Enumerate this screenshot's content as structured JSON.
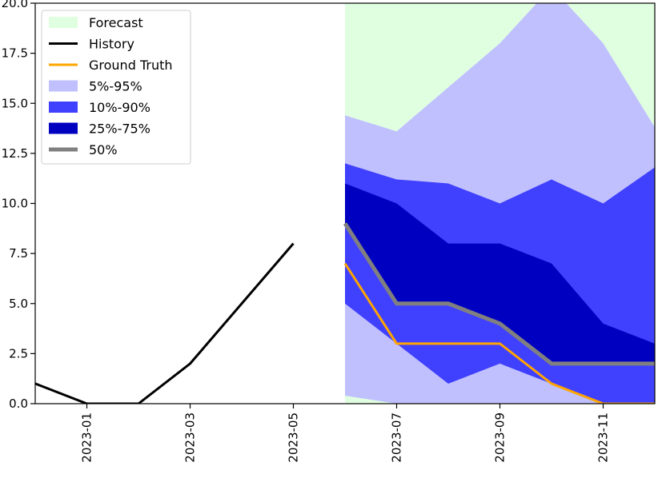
{
  "chart_data": {
    "type": "area",
    "title": "",
    "xlabel": "",
    "ylabel": "",
    "x": [
      "2022-12",
      "2023-01",
      "2023-02",
      "2023-03",
      "2023-04",
      "2023-05",
      "2023-06",
      "2023-07",
      "2023-08",
      "2023-09",
      "2023-10",
      "2023-11",
      "2023-12"
    ],
    "xlim": [
      "2022-12",
      "2023-12"
    ],
    "ylim": [
      0,
      20
    ],
    "x_ticks": [
      "2023-01",
      "2023-03",
      "2023-05",
      "2023-07",
      "2023-09",
      "2023-11"
    ],
    "y_ticks": [
      0.0,
      2.5,
      5.0,
      7.5,
      10.0,
      12.5,
      15.0,
      17.5,
      20.0
    ],
    "y_tick_labels": [
      "0.0",
      "2.5",
      "5.0",
      "7.5",
      "10.0",
      "12.5",
      "15.0",
      "17.5",
      "20.0"
    ],
    "forecast_start": "2023-06",
    "history": {
      "name": "History",
      "x": [
        "2022-12",
        "2023-01",
        "2023-02",
        "2023-03",
        "2023-04",
        "2023-05"
      ],
      "values": [
        1,
        0,
        0,
        2,
        5,
        8
      ]
    },
    "forecast_x": [
      "2023-06",
      "2023-07",
      "2023-08",
      "2023-09",
      "2023-10",
      "2023-11",
      "2023-12"
    ],
    "ground_truth": {
      "name": "Ground Truth",
      "values": [
        7,
        3,
        3,
        3,
        1,
        0,
        0
      ]
    },
    "median": {
      "name": "50%",
      "values": [
        9,
        5,
        5,
        4,
        2,
        2,
        2
      ]
    },
    "bands": [
      {
        "name": "5%-95%",
        "lower": [
          0.4,
          0,
          0,
          0,
          0,
          0,
          0
        ],
        "upper": [
          14.4,
          13.6,
          15.8,
          18,
          20.8,
          18,
          13.8
        ]
      },
      {
        "name": "10%-90%",
        "lower": [
          5,
          3,
          1,
          2,
          1,
          0,
          0
        ],
        "upper": [
          12,
          11.2,
          11,
          10,
          11.2,
          10,
          11.8
        ]
      },
      {
        "name": "25%-75%",
        "lower": [
          9,
          5,
          5,
          4,
          2,
          2,
          2
        ],
        "upper": [
          11,
          10,
          8,
          8,
          7,
          4,
          3
        ]
      }
    ],
    "legend": {
      "position": "top-left",
      "entries": [
        {
          "label": "Forecast",
          "kind": "patch",
          "color": "#e0ffe0"
        },
        {
          "label": "History",
          "kind": "line",
          "color": "#000000"
        },
        {
          "label": "Ground Truth",
          "kind": "line",
          "color": "#ffa500"
        },
        {
          "label": "5%-95%",
          "kind": "patch",
          "color": "#c0c0ff"
        },
        {
          "label": "10%-90%",
          "kind": "patch",
          "color": "#4040ff"
        },
        {
          "label": "25%-75%",
          "kind": "patch",
          "color": "#0000c0"
        },
        {
          "label": "50%",
          "kind": "line",
          "color": "#808080"
        }
      ]
    },
    "colors": {
      "forecast_bg": "#e0ffe0",
      "band_outer": "#c0c0ff",
      "band_mid": "#4040ff",
      "band_inner": "#0000c0",
      "history": "#000000",
      "ground_truth": "#ffa500",
      "median": "#808080"
    }
  }
}
